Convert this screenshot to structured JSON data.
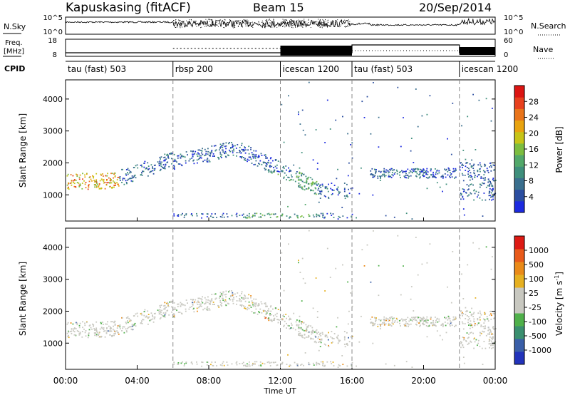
{
  "header": {
    "station": "Kapuskasing (fitACF)",
    "beam": "Beam 15",
    "date": "20/Sep/2014"
  },
  "panels": {
    "nsky": {
      "label": "N.Sky",
      "ticks_left": [
        "10^5",
        "10^0"
      ],
      "ticks_right": [
        "10^5",
        "10^0"
      ],
      "right_label": "N.Search"
    },
    "freq": {
      "label_line1": "Freq.",
      "label_line2": "[MHz]",
      "ticks_left": [
        "18",
        "8"
      ],
      "ticks_right": [
        "60",
        "0"
      ],
      "right_label": "Nave"
    },
    "cpid": {
      "label": "CPID",
      "segments": [
        {
          "name": "tau (fast) 503",
          "start": 0,
          "end": 6
        },
        {
          "name": "rbsp 200",
          "start": 6,
          "end": 12
        },
        {
          "name": "icescan 1200",
          "start": 12,
          "end": 16
        },
        {
          "name": "tau (fast) 503",
          "start": 16,
          "end": 22
        },
        {
          "name": "icescan 1200",
          "start": 22,
          "end": 24
        }
      ]
    }
  },
  "chart_data": [
    {
      "type": "heatmap",
      "name": "power",
      "xlabel": "",
      "ylabel": "Slant Range [km]",
      "xlim": [
        0,
        24
      ],
      "ylim": [
        180,
        4600
      ],
      "yticks": [
        "1000",
        "2000",
        "3000",
        "4000"
      ],
      "colorbar": {
        "label": "Power [dB]",
        "ticks": [
          "4",
          "8",
          "12",
          "16",
          "20",
          "24",
          "28"
        ],
        "colors": [
          "#1c2ae0",
          "#2b4ea0",
          "#3a6f8e",
          "#3f8f7c",
          "#52a86a",
          "#7cbd3f",
          "#c7c417",
          "#e8a30f",
          "#e9741a",
          "#e8401d",
          "#dc1512"
        ]
      }
    },
    {
      "type": "heatmap",
      "name": "velocity",
      "xlabel": "Time UT",
      "ylabel": "Slant Range [km]",
      "xlim": [
        0,
        24
      ],
      "ylim": [
        180,
        4600
      ],
      "xticks": [
        "00:00",
        "04:00",
        "08:00",
        "12:00",
        "16:00",
        "20:00",
        "00:00"
      ],
      "yticks": [
        "1000",
        "2000",
        "3000",
        "4000"
      ],
      "colorbar": {
        "label": "Velocity [m s^-1]",
        "ticks": [
          "1000",
          "500",
          "100",
          "25",
          "-25",
          "-100",
          "-500",
          "-1000"
        ],
        "colors": [
          "#2233bb",
          "#3a5fa8",
          "#3a8f6f",
          "#4fb04a",
          "#c8c8c0",
          "#c8c8c0",
          "#e6b020",
          "#ea8a18",
          "#e85a1a",
          "#dd1a14"
        ]
      }
    }
  ]
}
